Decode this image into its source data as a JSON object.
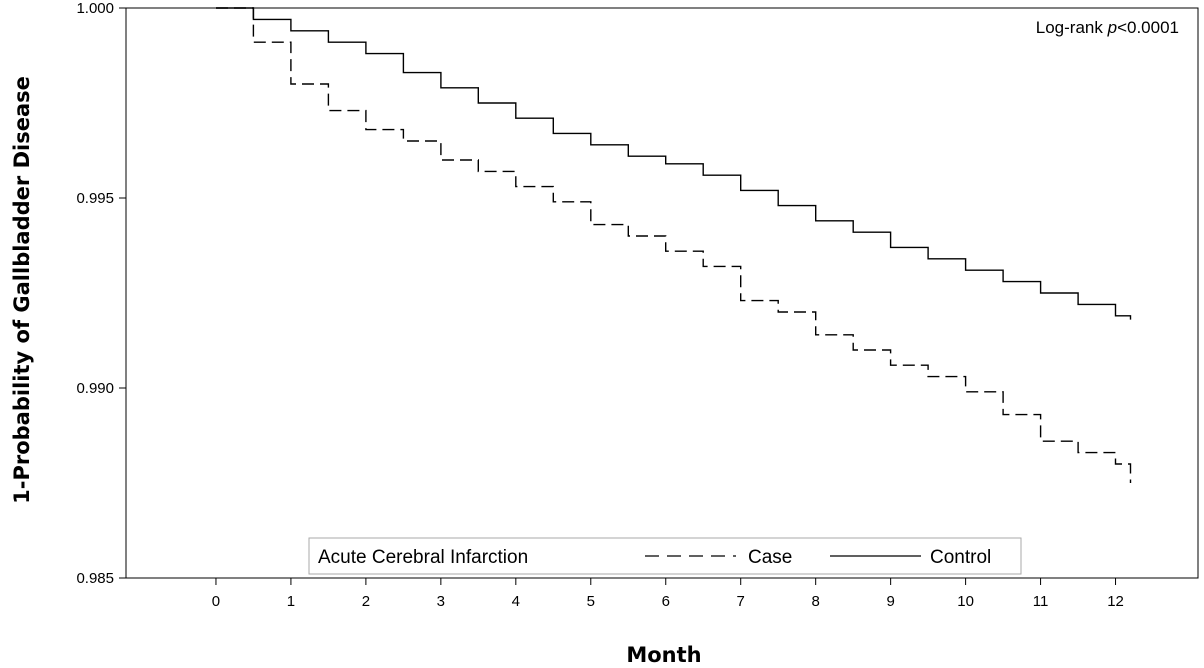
{
  "chart_data": {
    "type": "line",
    "title": "",
    "xlabel": "Month",
    "ylabel": "1-Probability of Gallbladder Disease",
    "xlim": [
      -1.2,
      13.1
    ],
    "ylim": [
      0.985,
      1.0
    ],
    "x_ticks": [
      0,
      1,
      2,
      3,
      4,
      5,
      6,
      7,
      8,
      9,
      10,
      11,
      12
    ],
    "x_tick_labels": [
      "0",
      "1",
      "2",
      "3",
      "4",
      "5",
      "6",
      "7",
      "8",
      "9",
      "10",
      "11",
      "12"
    ],
    "y_ticks": [
      0.985,
      0.99,
      0.995,
      1.0
    ],
    "y_tick_labels": [
      "0.985",
      "0.990",
      "0.995",
      "1.000"
    ],
    "grid": false,
    "step": true,
    "legend": {
      "placement": "bottom-center",
      "title": "Acute Cerebral Infarction",
      "entries": [
        {
          "label": "Case",
          "style": "dashed"
        },
        {
          "label": "Control",
          "style": "solid"
        }
      ]
    },
    "annotation": {
      "prefix": "Log-rank ",
      "italic": "p",
      "suffix": "<0.0001"
    },
    "series": [
      {
        "name": "Case",
        "style": "dashed",
        "color": "#000000",
        "x": [
          0,
          0.5,
          1.0,
          1.5,
          2.0,
          2.5,
          3.0,
          3.5,
          4.0,
          4.5,
          5.0,
          5.5,
          6.0,
          6.5,
          7.0,
          7.5,
          8.0,
          8.5,
          9.0,
          9.5,
          10.0,
          10.5,
          11.0,
          11.5,
          12.0,
          12.2
        ],
        "y": [
          1.0,
          0.9991,
          0.998,
          0.9973,
          0.9968,
          0.9965,
          0.996,
          0.9957,
          0.9953,
          0.9949,
          0.9943,
          0.994,
          0.9936,
          0.9932,
          0.9923,
          0.992,
          0.9914,
          0.991,
          0.9906,
          0.9903,
          0.9899,
          0.9893,
          0.9886,
          0.9883,
          0.988,
          0.9875
        ]
      },
      {
        "name": "Control",
        "style": "solid",
        "color": "#000000",
        "x": [
          0,
          0.5,
          1.0,
          1.5,
          2.0,
          2.5,
          3.0,
          3.5,
          4.0,
          4.5,
          5.0,
          5.5,
          6.0,
          6.5,
          7.0,
          7.5,
          8.0,
          8.5,
          9.0,
          9.5,
          10.0,
          10.5,
          11.0,
          11.5,
          12.0,
          12.2
        ],
        "y": [
          1.0,
          0.9997,
          0.9994,
          0.9991,
          0.9988,
          0.9983,
          0.9979,
          0.9975,
          0.9971,
          0.9967,
          0.9964,
          0.9961,
          0.9959,
          0.9956,
          0.9952,
          0.9948,
          0.9944,
          0.9941,
          0.9937,
          0.9934,
          0.9931,
          0.9928,
          0.9925,
          0.9922,
          0.9919,
          0.9918
        ]
      }
    ]
  }
}
